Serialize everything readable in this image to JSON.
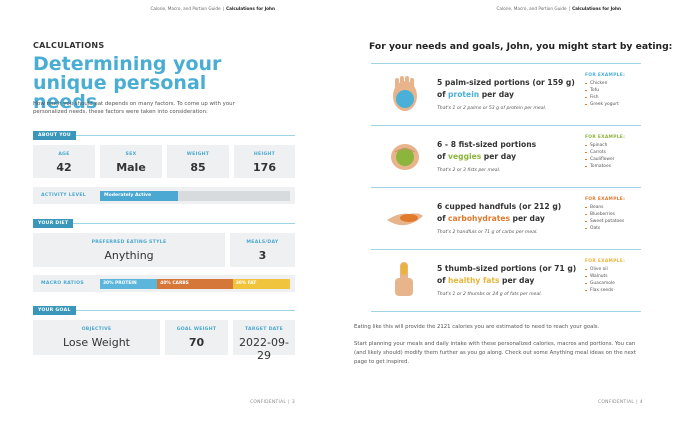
{
  "left_page": {
    "header": {
      "guide": "Calorie, Macro, and Portion Guide",
      "separator": "|",
      "title": "Calculations for John"
    },
    "section": "CALCULATIONS",
    "title": "Determining your unique personal needs",
    "intro": "How much you should eat depends on many factors. To come up with your personalized needs, these factors were taken into consideration:",
    "about_you": {
      "heading": "ABOUT YOU",
      "stats": [
        {
          "label": "AGE",
          "value": 42
        },
        {
          "label": "SEX",
          "value": "Male"
        },
        {
          "label": "WEIGHT",
          "value": 85
        },
        {
          "label": "HEIGHT",
          "value": 176
        }
      ],
      "activity": {
        "label": "ACTIVITY LEVEL",
        "value": "Moderately Active"
      }
    },
    "your_diet": {
      "heading": "YOUR DIET",
      "eating_style": {
        "label": "PREFERRED EATING STYLE",
        "value": "Anything"
      },
      "meals": {
        "label": "MEALS/DAY",
        "value": 3
      },
      "macros": {
        "label": "MACRO RATIOS",
        "ratios": [
          {
            "value": 30,
            "label": "30% PROTEIN",
            "color": "#5cb6dc"
          },
          {
            "value": 40,
            "label": "40% CARBS",
            "color": "#d6773a"
          },
          {
            "value": 30,
            "label": "30% FAT",
            "color": "#f0c43c"
          }
        ]
      }
    },
    "your_goal": {
      "heading": "YOUR GOAL",
      "items": [
        {
          "label": "OBJECTIVE",
          "value": "Lose Weight"
        },
        {
          "label": "GOAL WEIGHT",
          "value": 70
        },
        {
          "label": "TARGET DATE",
          "value": "2022-09-29"
        }
      ]
    },
    "footer": {
      "label": "CONFIDENTIAL",
      "separator": "|",
      "page": 3
    }
  },
  "right_page": {
    "header": {
      "guide": "Calorie, Macro, and Portion Guide",
      "separator": "|",
      "title": "Calculations for John"
    },
    "heading": "For your needs and goals, John, you might start by eating:",
    "portions": [
      {
        "amount": "5 palm-sized portions (or 159 g)",
        "of": "of",
        "food": "protein",
        "per": "per day",
        "color": "#4bb0d8",
        "note": "That's 1 or 2 palms or 53 g of protein per meal.",
        "example_heading": "FOR EXAMPLE:",
        "examples": [
          "Chicken",
          "Tofu",
          "Fish",
          "Greek yogurt"
        ]
      },
      {
        "amount": "6 - 8 fist-sized portions",
        "of": "of",
        "food": "veggies",
        "per": "per day",
        "color": "#8db43c",
        "note": "That's 2 or 3 fists per meal.",
        "example_heading": "FOR EXAMPLE:",
        "examples": [
          "Spinach",
          "Carrots",
          "Cauliflower",
          "Tomatoes"
        ]
      },
      {
        "amount": "6 cupped handfuls (or 212 g)",
        "of": "of",
        "food": "carbohydrates",
        "per": "per day",
        "color": "#e07a2c",
        "note": "That's 2 handfuls or 71 g of carbs per meal.",
        "example_heading": "FOR EXAMPLE:",
        "examples": [
          "Beans",
          "Blueberries",
          "Sweet potatoes",
          "Oats"
        ]
      },
      {
        "amount": "5 thumb-sized portions (or 71 g)",
        "of": "of",
        "food": "healthy fats",
        "per": "per day",
        "color": "#e8b53a",
        "note": "That's 1 or 2 thumbs or 24 g of fats per meal.",
        "example_heading": "FOR EXAMPLE:",
        "examples": [
          "Olive oil",
          "Walnuts",
          "Guacamole",
          "Flax seeds"
        ]
      }
    ],
    "summary": "Eating like this will provide the 2121 calories you are estimated to need to reach your goals.",
    "advice": "Start planning your meals and daily intake with these personalized calories, macros and portions. You can (and likely should) modify them further as you go along. Check out some Anything meal ideas on the next page to get inspired.",
    "footer": {
      "label": "CONFIDENTIAL",
      "separator": "|",
      "page": 4
    }
  }
}
